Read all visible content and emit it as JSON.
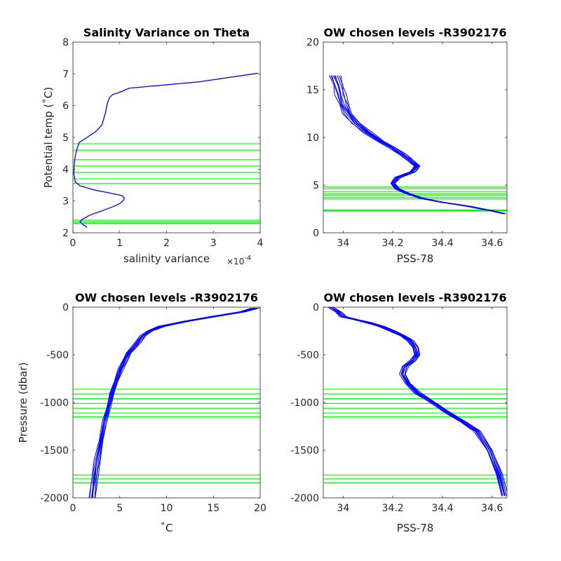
{
  "colors": {
    "profile": "#0000ff",
    "level": "#00ff00",
    "axis": "#262626"
  },
  "chart_data": [
    {
      "type": "line",
      "title": "Salinity Variance on Theta",
      "xlabel": "salinity variance",
      "x_exponent_base": "×10",
      "x_exponent_power": "-4",
      "ylabel": "Potential temp (˚C)",
      "xlim": [
        0,
        4
      ],
      "ylim": [
        2,
        8
      ],
      "xticks": [
        0,
        1,
        2,
        3,
        4
      ],
      "yticks": [
        2,
        3,
        4,
        5,
        6,
        7,
        8
      ],
      "xtick_labels": [
        "0",
        "1",
        "2",
        "3",
        "4"
      ],
      "ytick_labels": [
        "2",
        "3",
        "4",
        "5",
        "6",
        "7",
        "8"
      ],
      "series": [
        {
          "x": [
            0.3,
            0.2,
            0.15,
            0.2,
            0.35,
            0.6,
            0.85,
            1.0,
            1.08,
            1.1,
            1.05,
            0.8,
            0.45,
            0.15,
            0.05,
            0.02,
            0.03,
            0.06,
            0.1,
            0.14,
            0.3,
            0.5,
            0.62,
            0.7,
            0.73,
            0.78,
            0.85,
            1.0,
            1.2,
            2.7,
            3.95
          ],
          "y": [
            2.18,
            2.28,
            2.35,
            2.42,
            2.55,
            2.68,
            2.82,
            2.92,
            3.02,
            3.1,
            3.17,
            3.25,
            3.35,
            3.48,
            3.6,
            3.85,
            4.2,
            4.5,
            4.7,
            4.85,
            5.0,
            5.2,
            5.4,
            5.8,
            6.05,
            6.25,
            6.35,
            6.42,
            6.55,
            6.75,
            7.02
          ]
        }
      ],
      "levels": [
        2.3,
        2.35,
        2.4,
        3.55,
        3.7,
        3.9,
        4.1,
        4.3,
        4.6,
        4.8
      ]
    },
    {
      "type": "line",
      "title": "OW chosen levels -R3902176",
      "xlabel": "PSS-78",
      "ylabel": "",
      "xlim": [
        33.92,
        34.66
      ],
      "ylim": [
        0,
        20
      ],
      "xticks": [
        34,
        34.2,
        34.4,
        34.6
      ],
      "yticks": [
        0,
        5,
        10,
        15,
        20
      ],
      "xtick_labels": [
        "34",
        "34.2",
        "34.4",
        "34.6"
      ],
      "ytick_labels": [
        "0",
        "5",
        "10",
        "15",
        "20"
      ],
      "series": [
        {
          "x": [
            34.65,
            34.6,
            34.5,
            34.4,
            34.32,
            34.26,
            34.22,
            34.2,
            34.22,
            34.28,
            34.3,
            34.27,
            34.24,
            34.2,
            34.15,
            34.1,
            34.05,
            34.02,
            34.0,
            33.99,
            33.98,
            33.97
          ],
          "y": [
            2.0,
            2.3,
            2.8,
            3.2,
            3.6,
            4.1,
            4.6,
            5.2,
            5.8,
            6.4,
            7.0,
            7.6,
            8.2,
            8.9,
            9.6,
            10.5,
            11.5,
            12.5,
            13.5,
            14.5,
            15.5,
            16.5
          ]
        }
      ],
      "levels": [
        2.3,
        2.35,
        2.4,
        3.55,
        3.7,
        3.9,
        4.1,
        4.3,
        4.6,
        4.8
      ]
    },
    {
      "type": "line",
      "title": "OW chosen levels -R3902176",
      "xlabel": "˚C",
      "ylabel": "Pressure (dbar)",
      "xlim": [
        0,
        20
      ],
      "ylim": [
        -2000,
        0
      ],
      "xticks": [
        0,
        5,
        10,
        15,
        20
      ],
      "yticks": [
        -2000,
        -1500,
        -1000,
        -500,
        0
      ],
      "xtick_labels": [
        "0",
        "5",
        "10",
        "15",
        "20"
      ],
      "ytick_labels": [
        "-2000",
        "-1500",
        "-1000",
        "-500",
        "0"
      ],
      "series": [
        {
          "x": [
            2.1,
            2.3,
            2.6,
            3.0,
            3.4,
            3.8,
            4.2,
            4.6,
            5.1,
            5.6,
            6.0,
            6.5,
            7.0,
            7.5,
            8.2,
            9.5,
            12.0,
            15.0,
            18.0,
            19.5
          ],
          "y": [
            -2000,
            -1800,
            -1600,
            -1400,
            -1200,
            -1050,
            -900,
            -780,
            -650,
            -550,
            -480,
            -420,
            -360,
            -300,
            -250,
            -200,
            -150,
            -100,
            -50,
            -10
          ]
        }
      ],
      "levels": [
        -860,
        -910,
        -960,
        -1010,
        -1060,
        -1110,
        -1150,
        -1760,
        -1800,
        -1840
      ]
    },
    {
      "type": "line",
      "title": "OW chosen levels -R3902176",
      "xlabel": "PSS-78",
      "ylabel": "",
      "xlim": [
        33.92,
        34.66
      ],
      "ylim": [
        -2000,
        0
      ],
      "xticks": [
        34,
        34.2,
        34.4,
        34.6
      ],
      "yticks": [
        -2000,
        -1500,
        -1000,
        -500,
        0
      ],
      "xtick_labels": [
        "34",
        "34.2",
        "34.4",
        "34.6"
      ],
      "ytick_labels": [
        "-2000",
        "-1500",
        "-1000",
        "-500",
        "0"
      ],
      "series": [
        {
          "x": [
            33.95,
            33.98,
            34.0,
            34.05,
            34.1,
            34.15,
            34.2,
            34.24,
            34.27,
            34.29,
            34.3,
            34.28,
            34.25,
            34.24,
            34.26,
            34.3,
            34.36,
            34.42,
            34.48,
            34.54,
            34.59,
            34.63,
            34.65
          ],
          "y": [
            0,
            -50,
            -100,
            -130,
            -160,
            -200,
            -250,
            -300,
            -350,
            -420,
            -500,
            -560,
            -620,
            -700,
            -800,
            -900,
            -1000,
            -1100,
            -1200,
            -1300,
            -1500,
            -1750,
            -1980
          ]
        }
      ],
      "levels": [
        -860,
        -910,
        -960,
        -1010,
        -1060,
        -1110,
        -1150,
        -1760,
        -1800,
        -1840
      ]
    }
  ]
}
